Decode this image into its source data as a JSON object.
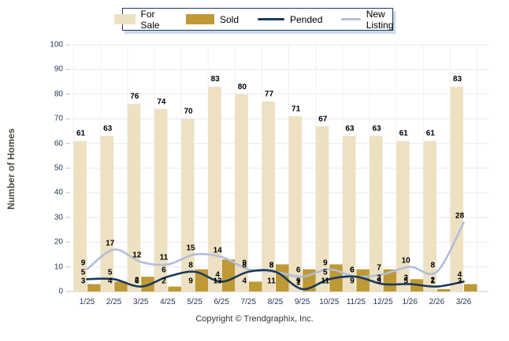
{
  "footer": "Copyright © Trendgraphix, Inc.",
  "colors": {
    "for_sale_bar": "#EDE1C2",
    "sold_bar": "#BF9935",
    "pended_line": "#1A3A5C",
    "new_listing_line": "#B2BED8",
    "grid_line": "#E9E9F1",
    "axis_line": "#C9C9D2",
    "legend_border": "#1A3A5C",
    "legend_shadow": "#C9D9EC",
    "tick_text": "#25365A"
  },
  "chart_data": {
    "type": "bar",
    "subtype": "grouped bars with smoothed overlay lines",
    "title": "",
    "xlabel": "",
    "ylabel": "Number of Homes",
    "ylim": [
      0,
      100
    ],
    "ytick_step": 10,
    "grid": true,
    "legend_position": "top",
    "categories": [
      "1/25",
      "2/25",
      "3/25",
      "4/25",
      "5/25",
      "6/25",
      "7/25",
      "8/25",
      "9/25",
      "10/25",
      "11/25",
      "12/25",
      "1/26",
      "2/26",
      "3/26"
    ],
    "series": [
      {
        "name": "For Sale",
        "type": "bar",
        "color": "#EDE1C2",
        "values": [
          61,
          63,
          76,
          74,
          70,
          83,
          80,
          77,
          71,
          67,
          63,
          63,
          61,
          61,
          83
        ]
      },
      {
        "name": "Sold",
        "type": "bar",
        "color": "#BF9935",
        "values": [
          3,
          4,
          6,
          2,
          9,
          13,
          4,
          11,
          9,
          11,
          9,
          9,
          5,
          1,
          3
        ]
      },
      {
        "name": "Pended",
        "type": "line",
        "color": "#1A3A5C",
        "values": [
          5,
          5,
          2,
          6,
          8,
          4,
          8,
          8,
          1,
          5,
          6,
          3,
          3,
          2,
          4
        ]
      },
      {
        "name": "New Listing",
        "type": "line",
        "color": "#B2BED8",
        "values": [
          9,
          17,
          12,
          11,
          15,
          14,
          9,
          8,
          6,
          9,
          6,
          7,
          10,
          8,
          28
        ]
      }
    ]
  }
}
